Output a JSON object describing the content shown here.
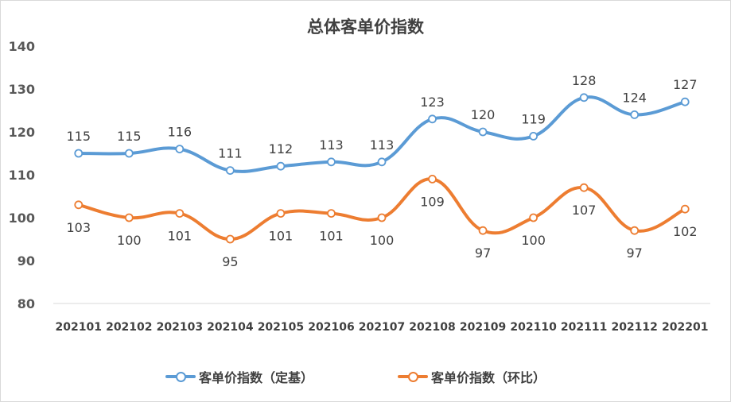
{
  "chart_data": {
    "type": "line",
    "title": "总体客单价指数",
    "categories": [
      "202101",
      "202102",
      "202103",
      "202104",
      "202105",
      "202106",
      "202107",
      "202108",
      "202109",
      "202110",
      "202111",
      "202112",
      "202201"
    ],
    "series": [
      {
        "name": "客单价指数（定基）",
        "values": [
          115,
          115,
          116,
          111,
          112,
          113,
          113,
          123,
          120,
          119,
          128,
          124,
          127
        ],
        "color": "#5b9bd5",
        "label_position": "above"
      },
      {
        "name": "客单价指数（环比）",
        "values": [
          103,
          100,
          101,
          95,
          101,
          101,
          100,
          109,
          97,
          100,
          107,
          97,
          102
        ],
        "color": "#ed7d31",
        "label_position": "below"
      }
    ],
    "ylim": [
      80,
      140
    ],
    "yticks": [
      "80",
      "90",
      "100",
      "110",
      "120",
      "130",
      "140"
    ],
    "xlabel": "",
    "ylabel": "",
    "smooth": true,
    "grid": false,
    "legend": "bottom"
  }
}
